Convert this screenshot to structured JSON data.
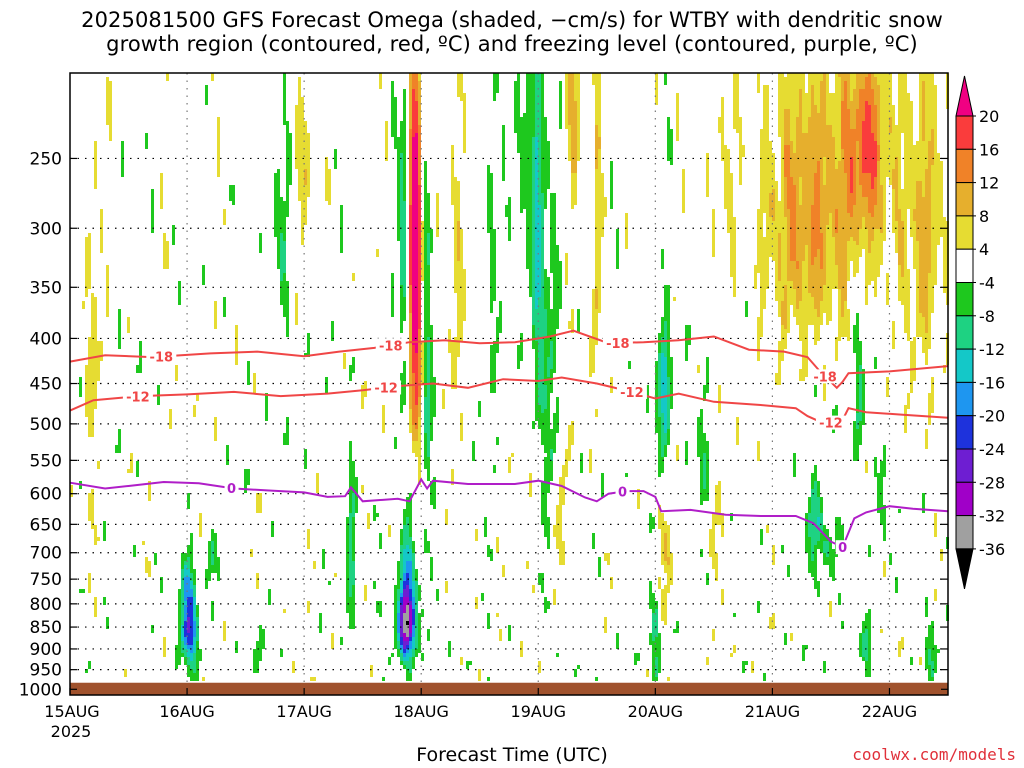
{
  "header": {
    "title_line1": "2025081500 GFS Forecast Omega (shaded, −cm/s) for WTBY with dendritic snow",
    "title_line2": "growth region (contoured, red, ºC) and freezing level (contoured, purple, ºC)"
  },
  "footer": {
    "xlabel": "Forecast Time (UTC)",
    "credit": "coolwx.com/models"
  },
  "chart_data": {
    "type": "heatmap",
    "x_axis": {
      "ticks": [
        "15AUG",
        "16AUG",
        "17AUG",
        "18AUG",
        "19AUG",
        "20AUG",
        "21AUG",
        "22AUG"
      ],
      "tick_days": [
        0,
        1,
        2,
        3,
        4,
        5,
        6,
        7
      ],
      "year_label": "2025",
      "range_days": [
        0,
        7.5
      ]
    },
    "y_axis": {
      "ticks": [
        250,
        300,
        350,
        400,
        450,
        500,
        550,
        600,
        650,
        700,
        750,
        800,
        850,
        900,
        950,
        1000
      ],
      "range": [
        200,
        1015
      ],
      "scale": "log-pressure (reversed)"
    },
    "colorbar": {
      "labels": [
        "20",
        "16",
        "12",
        "8",
        "4",
        "-4",
        "-8",
        "-12",
        "-16",
        "-20",
        "-24",
        "-28",
        "-32",
        "-36"
      ],
      "bins": [
        {
          "range": [
            -999,
            -36
          ],
          "color": "#000000"
        },
        {
          "range": [
            -36,
            -32
          ],
          "color": "#a0a0a0"
        },
        {
          "range": [
            -32,
            -28
          ],
          "color": "#a000c8"
        },
        {
          "range": [
            -28,
            -24
          ],
          "color": "#6e1ed2"
        },
        {
          "range": [
            -24,
            -20
          ],
          "color": "#1e32dc"
        },
        {
          "range": [
            -20,
            -16
          ],
          "color": "#1e96f0"
        },
        {
          "range": [
            -16,
            -12
          ],
          "color": "#14c8c8"
        },
        {
          "range": [
            -12,
            -8
          ],
          "color": "#1ed282"
        },
        {
          "range": [
            -8,
            -4
          ],
          "color": "#1ec81e"
        },
        {
          "range": [
            -4,
            4
          ],
          "color": "#ffffff"
        },
        {
          "range": [
            4,
            8
          ],
          "color": "#e6dc32"
        },
        {
          "range": [
            8,
            12
          ],
          "color": "#e6af2d"
        },
        {
          "range": [
            12,
            16
          ],
          "color": "#f08228"
        },
        {
          "range": [
            16,
            20
          ],
          "color": "#fa3c3c"
        },
        {
          "range": [
            20,
            999
          ],
          "color": "#f00082"
        }
      ]
    },
    "ground_level_hpa": 983,
    "ground_color": "#a0522d",
    "contours": [
      {
        "label": "-18",
        "color": "#f04646",
        "label_days": [
          0.78,
          2.74,
          4.68,
          6.45
        ],
        "points": [
          [
            0,
            425
          ],
          [
            0.3,
            418
          ],
          [
            0.7,
            420
          ],
          [
            1.2,
            416
          ],
          [
            1.6,
            414
          ],
          [
            2,
            419
          ],
          [
            2.3,
            414
          ],
          [
            2.6,
            410
          ],
          [
            2.9,
            404
          ],
          [
            3.2,
            402
          ],
          [
            3.5,
            405
          ],
          [
            3.8,
            404
          ],
          [
            4.1,
            398
          ],
          [
            4.3,
            392
          ],
          [
            4.6,
            405
          ],
          [
            4.9,
            404
          ],
          [
            5.2,
            402
          ],
          [
            5.5,
            398
          ],
          [
            5.8,
            412
          ],
          [
            6.1,
            414
          ],
          [
            6.3,
            420
          ],
          [
            6.4,
            435
          ],
          [
            6.55,
            455
          ],
          [
            6.6,
            448
          ],
          [
            6.65,
            438
          ],
          [
            7,
            436
          ],
          [
            7.5,
            430
          ]
        ]
      },
      {
        "label": "-12",
        "color": "#f04646",
        "label_days": [
          0.58,
          2.7,
          4.8,
          6.5
        ],
        "points": [
          [
            0,
            483
          ],
          [
            0.2,
            470
          ],
          [
            0.6,
            465
          ],
          [
            1,
            463
          ],
          [
            1.4,
            460
          ],
          [
            1.8,
            465
          ],
          [
            2.2,
            462
          ],
          [
            2.5,
            458
          ],
          [
            2.8,
            453
          ],
          [
            3.1,
            450
          ],
          [
            3.4,
            455
          ],
          [
            3.7,
            445
          ],
          [
            4,
            447
          ],
          [
            4.2,
            443
          ],
          [
            4.5,
            450
          ],
          [
            4.8,
            460
          ],
          [
            5,
            468
          ],
          [
            5.2,
            462
          ],
          [
            5.5,
            472
          ],
          [
            5.9,
            476
          ],
          [
            6.2,
            480
          ],
          [
            6.3,
            490
          ],
          [
            6.45,
            500
          ],
          [
            6.6,
            495
          ],
          [
            6.65,
            480
          ],
          [
            6.8,
            485
          ],
          [
            7.1,
            488
          ],
          [
            7.5,
            492
          ]
        ]
      },
      {
        "label": "0",
        "color": "#b01ec8",
        "label_days": [
          1.38,
          4.72,
          6.6
        ],
        "points": [
          [
            0,
            583
          ],
          [
            0.3,
            592
          ],
          [
            0.5,
            588
          ],
          [
            0.8,
            582
          ],
          [
            1.1,
            584
          ],
          [
            1.4,
            592
          ],
          [
            1.7,
            595
          ],
          [
            2.0,
            598
          ],
          [
            2.2,
            605
          ],
          [
            2.35,
            604
          ],
          [
            2.4,
            590
          ],
          [
            2.5,
            612
          ],
          [
            2.8,
            608
          ],
          [
            2.9,
            612
          ],
          [
            2.95,
            595
          ],
          [
            3.0,
            578
          ],
          [
            3.05,
            592
          ],
          [
            3.1,
            580
          ],
          [
            3.4,
            585
          ],
          [
            3.8,
            585
          ],
          [
            4.0,
            580
          ],
          [
            4.2,
            588
          ],
          [
            4.4,
            606
          ],
          [
            4.5,
            612
          ],
          [
            4.6,
            600
          ],
          [
            4.75,
            596
          ],
          [
            4.9,
            596
          ],
          [
            5.0,
            605
          ],
          [
            5.05,
            628
          ],
          [
            5.3,
            626
          ],
          [
            5.6,
            634
          ],
          [
            5.9,
            636
          ],
          [
            6.2,
            636
          ],
          [
            6.35,
            648
          ],
          [
            6.5,
            680
          ],
          [
            6.6,
            690
          ],
          [
            6.7,
            640
          ],
          [
            6.8,
            630
          ],
          [
            7.0,
            620
          ],
          [
            7.2,
            624
          ],
          [
            7.5,
            628
          ]
        ]
      }
    ]
  }
}
